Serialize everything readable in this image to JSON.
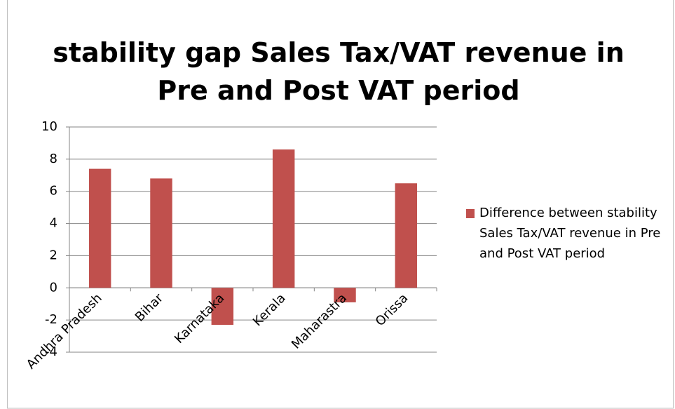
{
  "chart_data": {
    "type": "bar",
    "title": "stability gap Sales Tax/VAT revenue in Pre and Post VAT period",
    "categories": [
      "Andhra Pradesh",
      "Bihar",
      "Karnataka",
      "Kerala",
      "Maharastra",
      "Orissa"
    ],
    "series": [
      {
        "name": "Difference between stability Sales Tax/VAT revenue in Pre and Post VAT period",
        "color": "#c0504d",
        "values": [
          7.4,
          6.8,
          -2.3,
          8.6,
          -0.9,
          6.5
        ]
      }
    ],
    "ylim": [
      -4,
      10
    ],
    "yticks": [
      -4,
      -2,
      0,
      2,
      4,
      6,
      8,
      10
    ],
    "grid": true,
    "legend": "right"
  }
}
